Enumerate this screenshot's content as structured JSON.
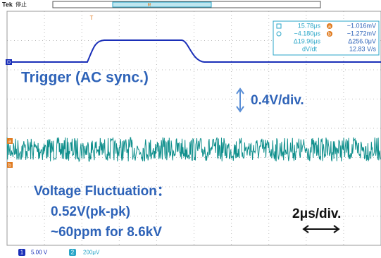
{
  "header": {
    "brand": "Tek",
    "status": "停止",
    "trigger_marker": "R"
  },
  "waveform_markers": {
    "trigger_position": "T",
    "reference": "D",
    "cursor_a": "a",
    "cursor_b": "b"
  },
  "readout": {
    "time_a": "15.78μs",
    "time_b": "−4.180μs",
    "time_delta": "Δ19.96μs",
    "slope_label": "dV/dt",
    "cursor_a_label": "a",
    "volt_a": "−1.016mV",
    "cursor_b_label": "b",
    "volt_b": "−1.272mV",
    "volt_delta": "Δ256.0μV",
    "slope": "12.83 V/s"
  },
  "annotations": {
    "trigger": "Trigger (AC sync.)",
    "vertical_scale": "0.4V/div.",
    "fluctuation_title": "Voltage Fluctuation：",
    "fluctuation_pkpk": "0.52V(pk-pk)",
    "fluctuation_ppm": "~60ppm for 8.6kV",
    "time_scale": "2μs/div."
  },
  "footer": {
    "ch1_label": "1",
    "ch1_scale": "5.00 V",
    "ch2_label": "2",
    "ch2_scale": "200μV"
  }
}
